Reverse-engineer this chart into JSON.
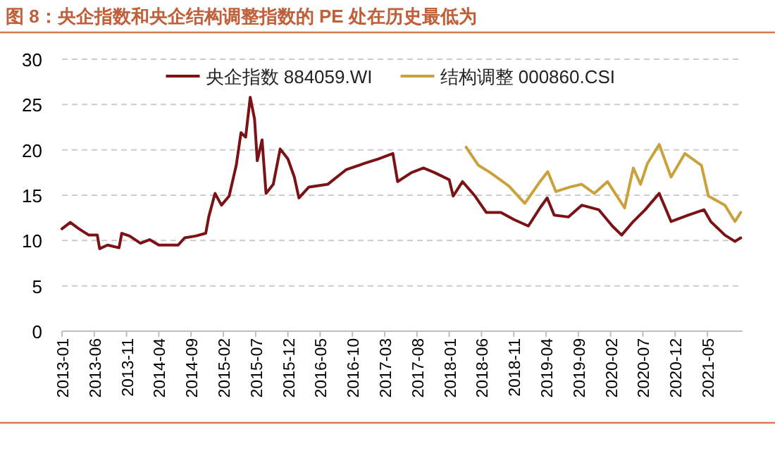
{
  "chart_data": {
    "type": "line",
    "title": "图 8：央企指数和央企结构调整指数的 PE 处在历史最低为",
    "xlim": [
      "2013-01-01",
      "2021-10-15"
    ],
    "ylim": [
      0,
      30
    ],
    "yticks": [
      0,
      5,
      10,
      15,
      20,
      25,
      30
    ],
    "xticks": [
      "2013-01",
      "2013-06",
      "2013-11",
      "2014-04",
      "2014-09",
      "2015-02",
      "2015-07",
      "2015-12",
      "2016-05",
      "2016-10",
      "2017-03",
      "2017-08",
      "2018-01",
      "2018-06",
      "2018-11",
      "2019-04",
      "2019-09",
      "2020-02",
      "2020-07",
      "2020-12",
      "2021-05"
    ],
    "grid": "y",
    "legend": "top",
    "line_style": "solid",
    "marker": "none",
    "series": [
      {
        "name": "央企指数 884059.WI",
        "color": "#7a1216",
        "x": [
          "2013-01-01",
          "2013-02-09",
          "2013-03-20",
          "2013-05-06",
          "2013-06-15",
          "2013-06-26",
          "2013-08-03",
          "2013-09-26",
          "2013-10-09",
          "2013-11-15",
          "2014-01-06",
          "2014-02-17",
          "2014-04-01",
          "2014-05-15",
          "2014-07-01",
          "2014-08-01",
          "2014-09-23",
          "2014-11-09",
          "2014-11-23",
          "2014-12-23",
          "2015-01-23",
          "2015-02-26",
          "2015-04-01",
          "2015-04-23",
          "2015-05-15",
          "2015-06-06",
          "2015-06-26",
          "2015-07-09",
          "2015-08-01",
          "2015-08-20",
          "2015-09-23",
          "2015-10-26",
          "2015-12-01",
          "2016-01-01",
          "2016-01-23",
          "2016-03-09",
          "2016-06-06",
          "2016-09-01",
          "2016-11-26",
          "2017-02-01",
          "2017-03-06",
          "2017-04-09",
          "2017-05-01",
          "2017-07-06",
          "2017-09-01",
          "2017-10-23",
          "2018-01-01",
          "2018-01-20",
          "2018-03-03",
          "2018-05-01",
          "2018-06-23",
          "2018-09-01",
          "2018-11-03",
          "2019-01-09",
          "2019-03-03",
          "2019-04-06",
          "2019-05-09",
          "2019-07-15",
          "2019-09-17",
          "2019-12-06",
          "2020-02-09",
          "2020-03-23",
          "2020-05-17",
          "2020-07-12",
          "2020-09-17",
          "2020-11-12",
          "2021-02-01",
          "2021-04-15",
          "2021-05-17",
          "2021-07-23",
          "2021-09-09",
          "2021-10-06"
        ],
        "values": [
          11.3,
          12.0,
          11.3,
          10.6,
          10.6,
          9.1,
          9.5,
          9.2,
          10.8,
          10.5,
          9.7,
          10.1,
          9.5,
          9.5,
          9.5,
          10.3,
          10.5,
          10.8,
          12.6,
          15.2,
          13.9,
          14.9,
          18.3,
          21.9,
          21.4,
          25.8,
          23.4,
          18.8,
          21.1,
          15.2,
          16.2,
          20.1,
          19.0,
          17.0,
          14.7,
          15.9,
          16.2,
          17.8,
          18.5,
          19.0,
          19.3,
          19.6,
          16.5,
          17.5,
          18.0,
          17.5,
          16.7,
          14.9,
          16.5,
          14.9,
          13.1,
          13.1,
          12.3,
          11.6,
          13.6,
          14.7,
          12.8,
          12.6,
          13.9,
          13.4,
          11.6,
          10.6,
          12.1,
          13.4,
          15.2,
          12.1,
          12.8,
          13.4,
          12.1,
          10.6,
          9.9,
          10.3
        ]
      },
      {
        "name": "结构调整 000860.CSI",
        "color": "#c9a23c",
        "x": [
          "2018-03-20",
          "2018-05-17",
          "2018-07-12",
          "2018-10-09",
          "2018-12-23",
          "2019-03-03",
          "2019-04-09",
          "2019-05-17",
          "2019-07-23",
          "2019-09-17",
          "2019-11-15",
          "2020-01-17",
          "2020-04-06",
          "2020-05-17",
          "2020-06-20",
          "2020-07-23",
          "2020-09-17",
          "2020-11-12",
          "2021-01-17",
          "2021-04-03",
          "2021-05-06",
          "2021-07-23",
          "2021-09-09",
          "2021-10-06"
        ],
        "values": [
          20.3,
          18.3,
          17.5,
          16.0,
          14.1,
          16.5,
          17.6,
          15.4,
          15.9,
          16.2,
          15.2,
          16.5,
          13.6,
          18.0,
          16.2,
          18.5,
          20.6,
          17.0,
          19.6,
          18.3,
          14.9,
          13.9,
          12.1,
          13.1
        ]
      }
    ]
  }
}
